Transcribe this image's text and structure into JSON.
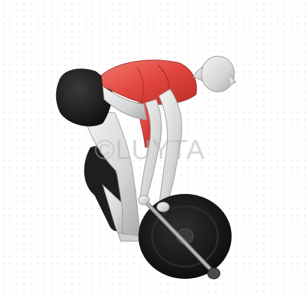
{
  "illustration": {
    "subject_icon": "barbell-row-exerciser-icon",
    "highlight_color": "#e1463e",
    "skin_color": "#d9d9d9",
    "shorts_color": "#1c1c1c",
    "plate_color": "#1a1a1a",
    "bar_color": "#9a9a9a"
  },
  "watermark": {
    "text": "©LUYTA",
    "color": "#b4b4b4"
  }
}
